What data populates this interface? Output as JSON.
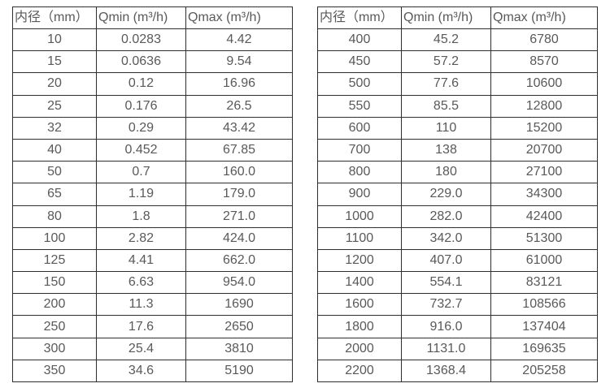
{
  "page": {
    "background_color": "#ffffff",
    "text_color": "#595959",
    "border_color": "#2f2f2f"
  },
  "columns": [
    "diameter",
    "qmin",
    "qmax"
  ],
  "tables": [
    {
      "name": "flow-table-left",
      "headers": [
        "内径（mm）",
        "Qmin (m³/h)",
        "Qmax (m³/h)"
      ],
      "rows": [
        [
          "10",
          "0.0283",
          "4.42"
        ],
        [
          "15",
          "0.0636",
          "9.54"
        ],
        [
          "20",
          "0.12",
          "16.96"
        ],
        [
          "25",
          "0.176",
          "26.5"
        ],
        [
          "32",
          "0.29",
          "43.42"
        ],
        [
          "40",
          "0.452",
          "67.85"
        ],
        [
          "50",
          "0.7",
          "160.0"
        ],
        [
          "65",
          "1.19",
          "179.0"
        ],
        [
          "80",
          "1.8",
          "271.0"
        ],
        [
          "100",
          "2.82",
          "424.0"
        ],
        [
          "125",
          "4.41",
          "662.0"
        ],
        [
          "150",
          "6.63",
          "954.0"
        ],
        [
          "200",
          "11.3",
          "1690"
        ],
        [
          "250",
          "17.6",
          "2650"
        ],
        [
          "300",
          "25.4",
          "3810"
        ],
        [
          "350",
          "34.6",
          "5190"
        ]
      ]
    },
    {
      "name": "flow-table-right",
      "headers": [
        "内径（mm）",
        "Qmin (m³/h)",
        "Qmax (m³/h)"
      ],
      "rows": [
        [
          "400",
          "45.2",
          "6780"
        ],
        [
          "450",
          "57.2",
          "8570"
        ],
        [
          "500",
          "77.6",
          "10600"
        ],
        [
          "550",
          "85.5",
          "12800"
        ],
        [
          "600",
          "110",
          "15200"
        ],
        [
          "700",
          "138",
          "20700"
        ],
        [
          "800",
          "180",
          "27100"
        ],
        [
          "900",
          "229.0",
          "34300"
        ],
        [
          "1000",
          "282.0",
          "42400"
        ],
        [
          "1100",
          "342.0",
          "51300"
        ],
        [
          "1200",
          "407.0",
          "61000"
        ],
        [
          "1400",
          "554.1",
          "83121"
        ],
        [
          "1600",
          "732.7",
          "108566"
        ],
        [
          "1800",
          "916.0",
          "137404"
        ],
        [
          "2000",
          "1131.0",
          "169635"
        ],
        [
          "2200",
          "1368.4",
          "205258"
        ]
      ]
    }
  ],
  "chart_data": {
    "type": "table",
    "title": "",
    "series": [
      {
        "name": "left-table",
        "columns": [
          "内径（mm）",
          "Qmin (m³/h)",
          "Qmax (m³/h)"
        ],
        "diameter_mm": [
          10,
          15,
          20,
          25,
          32,
          40,
          50,
          65,
          80,
          100,
          125,
          150,
          200,
          250,
          300,
          350
        ],
        "qmin": [
          0.0283,
          0.0636,
          0.12,
          0.176,
          0.29,
          0.452,
          0.7,
          1.19,
          1.8,
          2.82,
          4.41,
          6.63,
          11.3,
          17.6,
          25.4,
          34.6
        ],
        "qmax": [
          4.42,
          9.54,
          16.96,
          26.5,
          43.42,
          67.85,
          160.0,
          179.0,
          271.0,
          424.0,
          662.0,
          954.0,
          1690,
          2650,
          3810,
          5190
        ]
      },
      {
        "name": "right-table",
        "columns": [
          "内径（mm）",
          "Qmin (m³/h)",
          "Qmax (m³/h)"
        ],
        "diameter_mm": [
          400,
          450,
          500,
          550,
          600,
          700,
          800,
          900,
          1000,
          1100,
          1200,
          1400,
          1600,
          1800,
          2000,
          2200
        ],
        "qmin": [
          45.2,
          57.2,
          77.6,
          85.5,
          110,
          138,
          180,
          229.0,
          282.0,
          342.0,
          407.0,
          554.1,
          732.7,
          916.0,
          1131.0,
          1368.4
        ],
        "qmax": [
          6780,
          8570,
          10600,
          12800,
          15200,
          20700,
          27100,
          34300,
          42400,
          51300,
          61000,
          83121,
          108566,
          137404,
          169635,
          205258
        ]
      }
    ]
  }
}
